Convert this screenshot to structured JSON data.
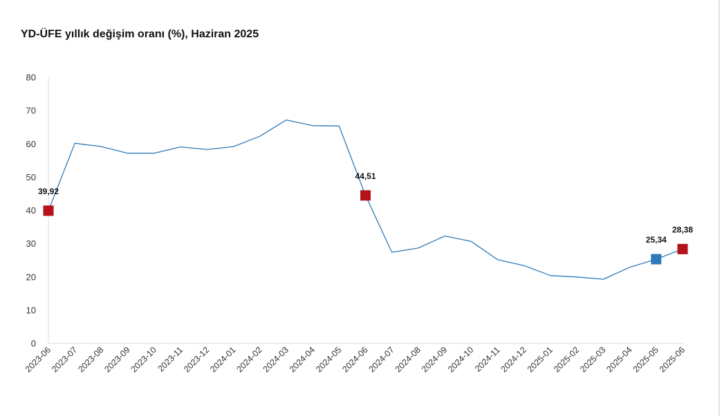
{
  "chart_data": {
    "type": "line",
    "title": "YD-ÜFE yıllık değişim oranı (%), Haziran 2025",
    "xlabel": "",
    "ylabel": "",
    "ylim": [
      0,
      80
    ],
    "yticks": [
      0,
      10,
      20,
      30,
      40,
      50,
      60,
      70,
      80
    ],
    "grid": false,
    "categories": [
      "2023-06",
      "2023-07",
      "2023-08",
      "2023-09",
      "2023-10",
      "2023-11",
      "2023-12",
      "2024-01",
      "2024-02",
      "2024-03",
      "2024-04",
      "2024-05",
      "2024-06",
      "2024-07",
      "2024-08",
      "2024-09",
      "2024-10",
      "2024-11",
      "2024-12",
      "2025-01",
      "2025-02",
      "2025-03",
      "2025-04",
      "2025-05",
      "2025-06"
    ],
    "series": [
      {
        "values": [
          39.92,
          60.2,
          59.2,
          57.2,
          57.2,
          59.1,
          58.3,
          59.2,
          62.3,
          67.2,
          65.5,
          65.4,
          44.51,
          27.4,
          28.7,
          32.3,
          30.7,
          25.2,
          23.4,
          20.4,
          20.0,
          19.3,
          22.9,
          25.34,
          28.38
        ],
        "color": "#2e7ab8"
      }
    ],
    "highlighted_points": [
      {
        "category": "2023-06",
        "value": 39.92,
        "label": "39,92",
        "color": "#b5121b"
      },
      {
        "category": "2024-06",
        "value": 44.51,
        "label": "44,51",
        "color": "#b5121b"
      },
      {
        "category": "2025-05",
        "value": 25.34,
        "label": "25,34",
        "color": "#2e7ab8"
      },
      {
        "category": "2025-06",
        "value": 28.38,
        "label": "28,38",
        "color": "#b5121b"
      }
    ]
  }
}
